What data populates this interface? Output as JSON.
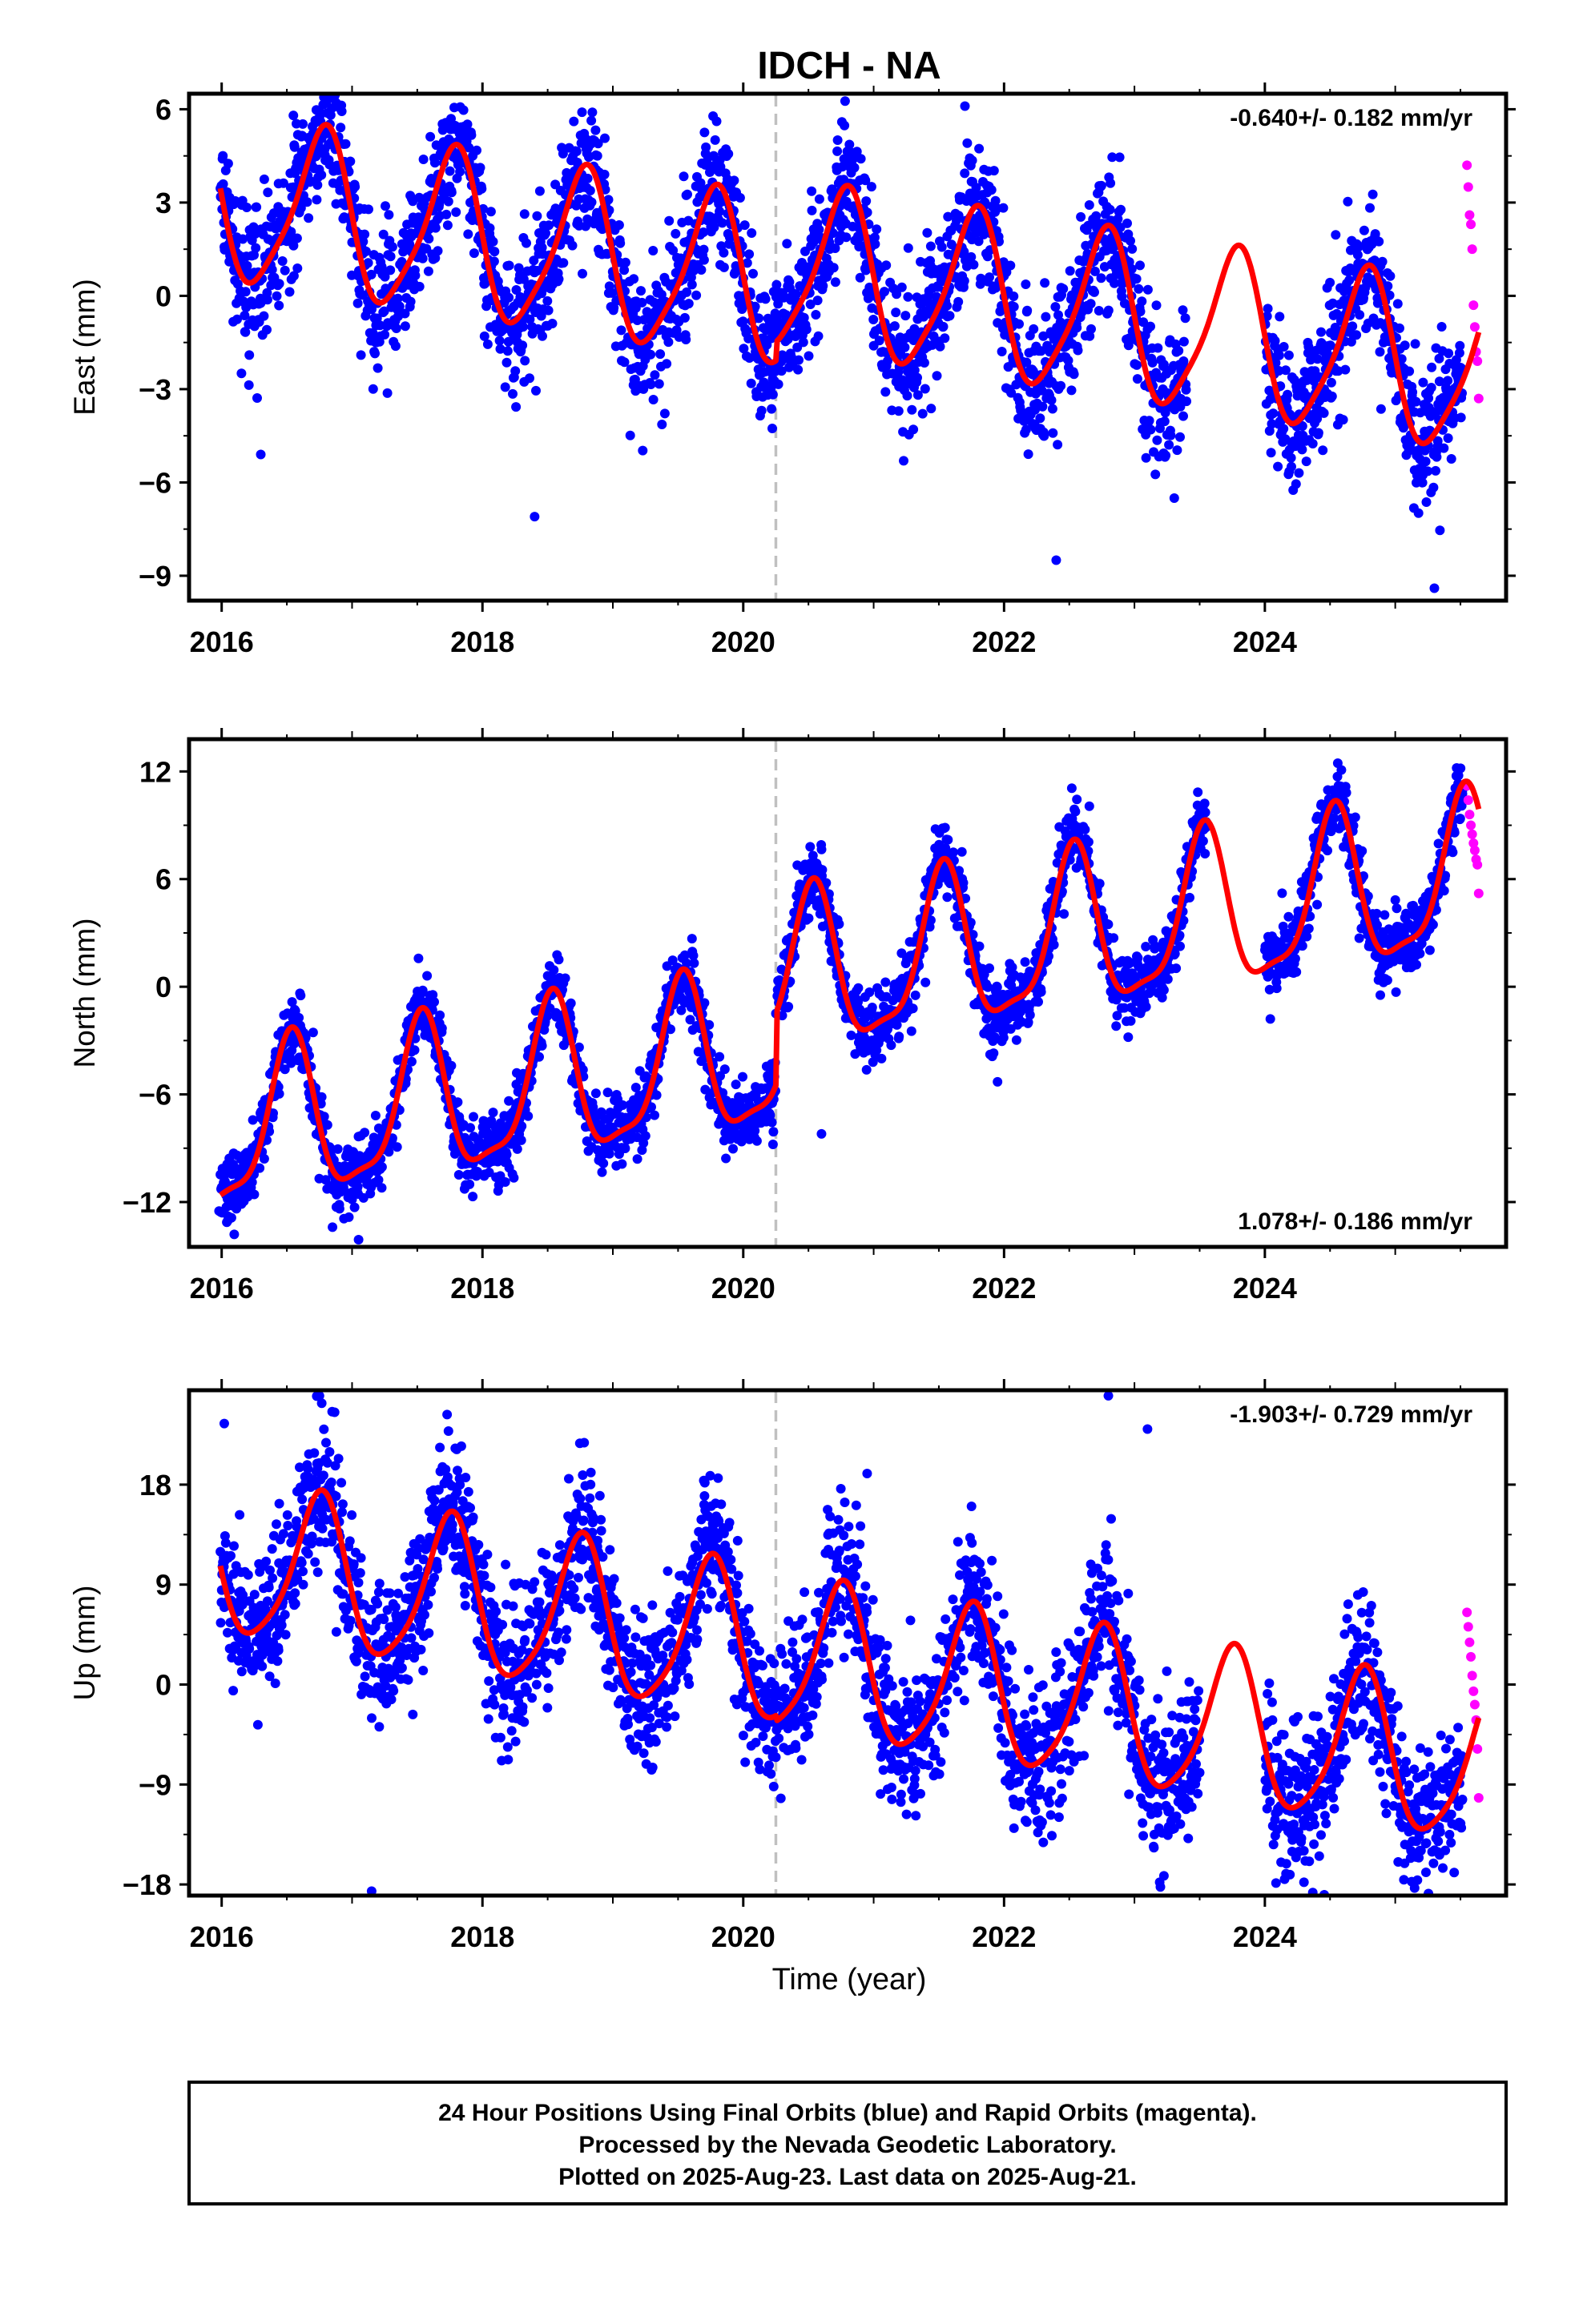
{
  "title": "IDCH - NA",
  "xlabel": "Time (year)",
  "footer": {
    "line1": "24 Hour Positions Using Final Orbits (blue) and Rapid Orbits (magenta).",
    "line2": "Processed by the Nevada Geodetic Laboratory.",
    "line3": "Plotted on 2025-Aug-23. Last data on 2025-Aug-21."
  },
  "colors": {
    "final": "#0000ff",
    "rapid": "#ff00ff",
    "model": "#ff0000",
    "event_line": "#c0c0c0"
  },
  "chart_data": [
    {
      "type": "scatter",
      "panel": "east",
      "ylabel": "East (mm)",
      "rate": "-0.640+/- 0.182 mm/yr",
      "rate_position": "top-right",
      "xlim": [
        2015.75,
        2025.85
      ],
      "ylim": [
        -9.8,
        6.5
      ],
      "yticks": [
        -9,
        -6,
        -3,
        0,
        3,
        6
      ],
      "ytick_labels": [
        "−9",
        "−6",
        "−3",
        "0",
        "3",
        "6"
      ],
      "xticks": [
        2016,
        2018,
        2020,
        2022,
        2024
      ],
      "xtick_labels": [
        "2016",
        "2018",
        "2020",
        "2022",
        "2024"
      ],
      "event_line_x": 2020.25,
      "data_range_final": [
        2015.99,
        2025.52
      ],
      "data_range_rapid": [
        2025.54,
        2025.64
      ],
      "model": {
        "offset_before": 0.5,
        "offset_after": 1.1,
        "rate": -0.64,
        "t0": 2020.0,
        "annual_amp": 2.6,
        "annual_peak": 2015.77,
        "semiannual_amp": 0.5,
        "semiannual_peak": 2015.85,
        "noise_sd": 1.1,
        "period": 2020.0,
        "period_range": [
          2023.4,
          2024.0
        ]
      },
      "outliers": [
        {
          "x": 2016.3,
          "y": -5.1
        },
        {
          "x": 2018.4,
          "y": -7.1
        },
        {
          "x": 2022.4,
          "y": -8.5
        },
        {
          "x": 2025.3,
          "y": -9.4
        },
        {
          "x": 2016.55,
          "y": 5.8
        },
        {
          "x": 2021.7,
          "y": 6.1
        }
      ],
      "rapid_points": [
        {
          "x": 2025.55,
          "y": 4.2
        },
        {
          "x": 2025.56,
          "y": 3.5
        },
        {
          "x": 2025.57,
          "y": 2.6
        },
        {
          "x": 2025.58,
          "y": 2.3
        },
        {
          "x": 2025.59,
          "y": 1.5
        },
        {
          "x": 2025.6,
          "y": -0.3
        },
        {
          "x": 2025.61,
          "y": -1.0
        },
        {
          "x": 2025.62,
          "y": -1.8
        },
        {
          "x": 2025.63,
          "y": -2.1
        },
        {
          "x": 2025.64,
          "y": -3.3
        }
      ]
    },
    {
      "type": "scatter",
      "panel": "north",
      "ylabel": "North (mm)",
      "rate": "1.078+/- 0.186 mm/yr",
      "rate_position": "bottom-right",
      "xlim": [
        2015.75,
        2025.85
      ],
      "ylim": [
        -14.5,
        13.8
      ],
      "yticks": [
        -12,
        -6,
        0,
        6,
        12
      ],
      "ytick_labels": [
        "−12",
        "−6",
        "0",
        "6",
        "12"
      ],
      "xticks": [
        2016,
        2018,
        2020,
        2022,
        2024
      ],
      "xtick_labels": [
        "2016",
        "2018",
        "2020",
        "2022",
        "2024"
      ],
      "event_line_x": 2020.25,
      "data_range_final": [
        2015.99,
        2025.52
      ],
      "data_range_rapid": [
        2025.54,
        2025.64
      ],
      "model": {
        "offset_before": -4.0,
        "offset_after": 0.0,
        "rate": 1.078,
        "t0": 2020.0,
        "annual_amp": 4.3,
        "annual_peak": 2015.53,
        "semiannual_amp": 1.2,
        "semiannual_peak": 2015.55,
        "noise_sd": 1.0,
        "period": 2020.0,
        "period_range": [
          2023.55,
          2024.0
        ]
      },
      "outliers": [
        {
          "x": 2015.98,
          "y": -12.5
        },
        {
          "x": 2016.85,
          "y": -13.4
        },
        {
          "x": 2017.05,
          "y": -14.1
        },
        {
          "x": 2020.6,
          "y": -8.2
        },
        {
          "x": 2021.95,
          "y": -5.3
        }
      ],
      "rapid_points": [
        {
          "x": 2025.55,
          "y": 11.2
        },
        {
          "x": 2025.56,
          "y": 10.4
        },
        {
          "x": 2025.57,
          "y": 9.6
        },
        {
          "x": 2025.58,
          "y": 9.0
        },
        {
          "x": 2025.59,
          "y": 8.5
        },
        {
          "x": 2025.6,
          "y": 8.0
        },
        {
          "x": 2025.61,
          "y": 7.6
        },
        {
          "x": 2025.62,
          "y": 7.1
        },
        {
          "x": 2025.63,
          "y": 6.8
        },
        {
          "x": 2025.64,
          "y": 5.2
        }
      ]
    },
    {
      "type": "scatter",
      "panel": "up",
      "ylabel": "Up (mm)",
      "rate": "-1.903+/- 0.729 mm/yr",
      "rate_position": "top-right",
      "xlim": [
        2015.75,
        2025.85
      ],
      "ylim": [
        -19.0,
        26.5
      ],
      "yticks": [
        -18,
        -9,
        0,
        9,
        18
      ],
      "ytick_labels": [
        "−18",
        "−9",
        "0",
        "9",
        "18"
      ],
      "xticks": [
        2016,
        2018,
        2020,
        2022,
        2024
      ],
      "xtick_labels": [
        "2016",
        "2018",
        "2020",
        "2022",
        "2024"
      ],
      "event_line_x": 2020.25,
      "data_range_final": [
        2015.99,
        2025.52
      ],
      "data_range_rapid": [
        2025.54,
        2025.64
      ],
      "model": {
        "offset_before": 3.5,
        "offset_after": 3.0,
        "rate": -1.903,
        "t0": 2020.0,
        "annual_amp": 6.8,
        "annual_peak": 2015.75,
        "semiannual_amp": 1.2,
        "semiannual_peak": 2015.8,
        "noise_sd": 3.3,
        "period": 2020.0,
        "period_range": [
          2023.5,
          2024.0
        ]
      },
      "outliers": [
        {
          "x": 2016.02,
          "y": 23.5
        },
        {
          "x": 2016.75,
          "y": 26.0
        },
        {
          "x": 2017.15,
          "y": -18.6
        },
        {
          "x": 2020.95,
          "y": 19.0
        },
        {
          "x": 2022.8,
          "y": 26.0
        },
        {
          "x": 2023.1,
          "y": 23.0
        },
        {
          "x": 2024.3,
          "y": -17.8
        }
      ],
      "rapid_points": [
        {
          "x": 2025.55,
          "y": 6.5
        },
        {
          "x": 2025.56,
          "y": 5.2
        },
        {
          "x": 2025.57,
          "y": 3.8
        },
        {
          "x": 2025.58,
          "y": 2.5
        },
        {
          "x": 2025.59,
          "y": 0.8
        },
        {
          "x": 2025.6,
          "y": -0.6
        },
        {
          "x": 2025.61,
          "y": -1.8
        },
        {
          "x": 2025.62,
          "y": -3.2
        },
        {
          "x": 2025.63,
          "y": -5.8
        },
        {
          "x": 2025.64,
          "y": -10.2
        }
      ]
    }
  ]
}
